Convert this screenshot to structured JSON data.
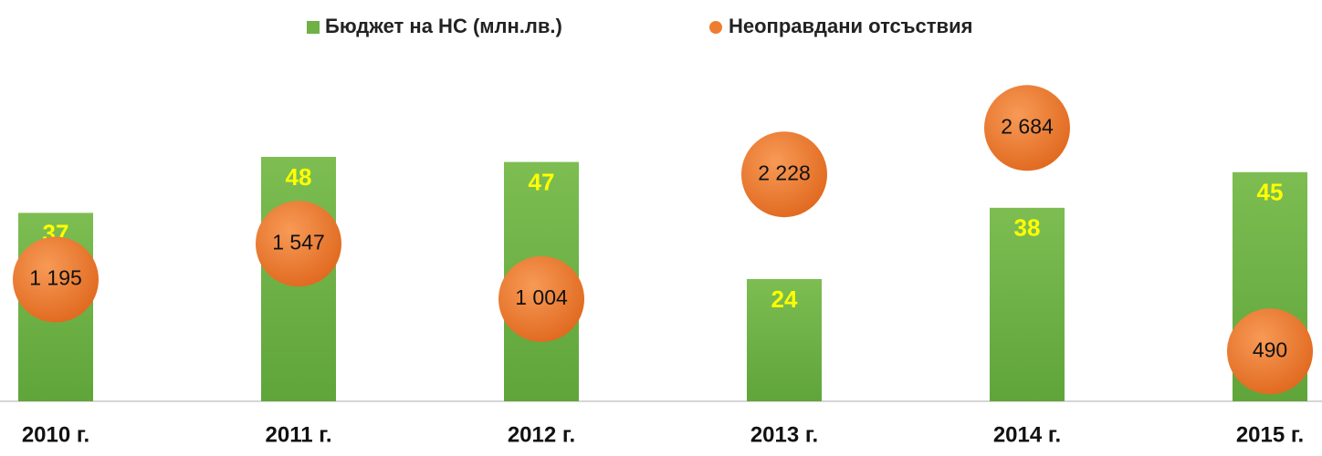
{
  "chart_data": {
    "type": "bar",
    "categories": [
      "2010 г.",
      "2011 г.",
      "2012 г.",
      "2013 г.",
      "2014 г.",
      "2015 г."
    ],
    "series": [
      {
        "name": "Бюджет на НС (млн.лв.)",
        "color": "#6fb146",
        "values": [
          37,
          48,
          47,
          24,
          38,
          45
        ]
      },
      {
        "name": "Неоправдани отсъствия",
        "color": "#ed7d31",
        "axis": "y2",
        "values": [
          1195,
          1547,
          1004,
          2228,
          2684,
          490
        ],
        "value_labels": [
          "1 195",
          "1 547",
          "1 004",
          "2 228",
          "2 684",
          "490"
        ]
      }
    ],
    "ylim": [
      0,
      60
    ],
    "y2lim": [
      0,
      3000
    ],
    "legend": "top"
  }
}
